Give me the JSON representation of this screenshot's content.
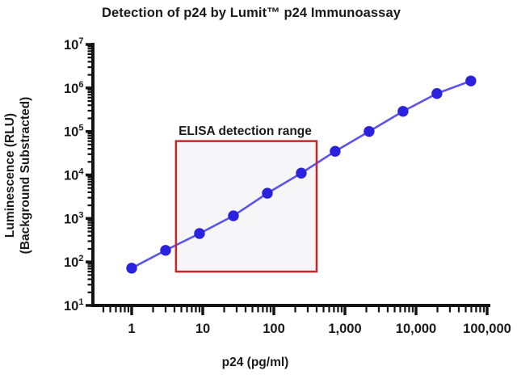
{
  "title": "Detection of p24 by Lumit™ p24 Immunoassay",
  "chart_data": {
    "type": "scatter",
    "title": "Detection of p24 by Lumit™ p24 Immunoassay",
    "xlabel": "p24 (pg/ml)",
    "ylabel_line1": "Luminescence (RLU)",
    "ylabel_line2": "(Background Substracted)",
    "x_scale": "log",
    "y_scale": "log",
    "x_axis_range": [
      0.3,
      130000
    ],
    "y_axis_range": [
      10,
      10000000
    ],
    "grid": "off",
    "x_ticks": {
      "values": [
        1,
        10,
        100,
        1000,
        10000,
        100000
      ],
      "labels": [
        "1",
        "10",
        "100",
        "1,000",
        "10,000",
        "100,000"
      ]
    },
    "y_ticks": {
      "base": "10",
      "exponents": [
        1,
        2,
        3,
        4,
        5,
        6,
        7
      ]
    },
    "series": [
      {
        "x": [
          1,
          3,
          9,
          27,
          81,
          243,
          729,
          2187,
          6561,
          19683,
          59049
        ],
        "y": [
          72,
          185,
          450,
          1150,
          3800,
          11000,
          35000,
          100000,
          290000,
          745000,
          1450000
        ],
        "marker": "circle",
        "marker_color": "#2a22dd",
        "line_color": "#5b54ec"
      }
    ],
    "annotation": {
      "label": "ELISA detection range",
      "x_range": [
        4.2,
        400
      ],
      "y_range": [
        60,
        60000
      ],
      "border_color": "#c5262c",
      "fill_color": "#f6f6f8"
    },
    "axis_color": "#141414"
  }
}
